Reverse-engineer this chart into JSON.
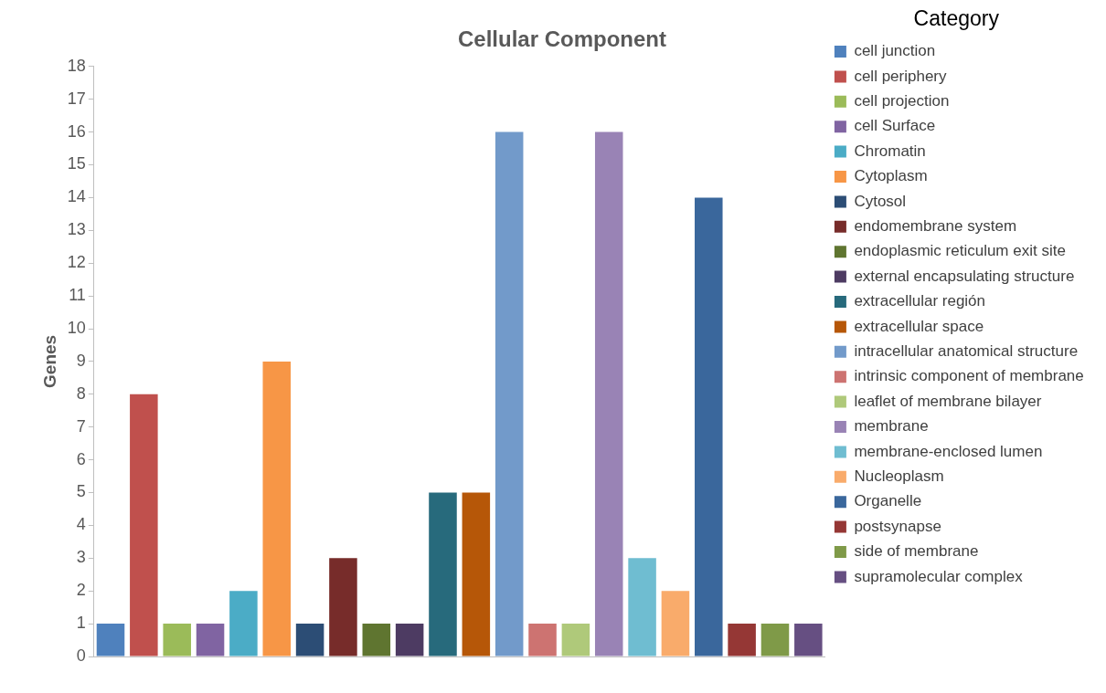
{
  "chart_data": {
    "type": "bar",
    "title": "Cellular Component",
    "ylabel": "Genes",
    "legend_title": "Category",
    "legend": "right",
    "tick_labels": "y",
    "grid": false,
    "categories": [
      null,
      null,
      null,
      null,
      null,
      null,
      null,
      null,
      null,
      null,
      null,
      null,
      null,
      null,
      null,
      null,
      null,
      null,
      null,
      null,
      null,
      null
    ],
    "series": [
      {
        "name": "cell junction",
        "color": "#4f81bd",
        "values": [
          1,
          null,
          null,
          null,
          null,
          null,
          null,
          null,
          null,
          null,
          null,
          null,
          null,
          null,
          null,
          null,
          null,
          null,
          null,
          null,
          null,
          null
        ]
      },
      {
        "name": "cell periphery",
        "color": "#c0504d",
        "values": [
          null,
          8,
          null,
          null,
          null,
          null,
          null,
          null,
          null,
          null,
          null,
          null,
          null,
          null,
          null,
          null,
          null,
          null,
          null,
          null,
          null,
          null
        ]
      },
      {
        "name": "cell projection",
        "color": "#9bbb59",
        "values": [
          null,
          null,
          1,
          null,
          null,
          null,
          null,
          null,
          null,
          null,
          null,
          null,
          null,
          null,
          null,
          null,
          null,
          null,
          null,
          null,
          null,
          null
        ]
      },
      {
        "name": "cell Surface",
        "color": "#8064a2",
        "values": [
          null,
          null,
          null,
          1,
          null,
          null,
          null,
          null,
          null,
          null,
          null,
          null,
          null,
          null,
          null,
          null,
          null,
          null,
          null,
          null,
          null,
          null
        ]
      },
      {
        "name": "Chromatin",
        "color": "#4bacc6",
        "values": [
          null,
          null,
          null,
          null,
          2,
          null,
          null,
          null,
          null,
          null,
          null,
          null,
          null,
          null,
          null,
          null,
          null,
          null,
          null,
          null,
          null,
          null
        ]
      },
      {
        "name": "Cytoplasm",
        "color": "#f79646",
        "values": [
          null,
          null,
          null,
          null,
          null,
          9,
          null,
          null,
          null,
          null,
          null,
          null,
          null,
          null,
          null,
          null,
          null,
          null,
          null,
          null,
          null,
          null
        ]
      },
      {
        "name": "Cytosol",
        "color": "#2c4d75",
        "values": [
          null,
          null,
          null,
          null,
          null,
          null,
          1,
          null,
          null,
          null,
          null,
          null,
          null,
          null,
          null,
          null,
          null,
          null,
          null,
          null,
          null,
          null
        ]
      },
      {
        "name": "endomembrane system",
        "color": "#772c2a",
        "values": [
          null,
          null,
          null,
          null,
          null,
          null,
          null,
          3,
          null,
          null,
          null,
          null,
          null,
          null,
          null,
          null,
          null,
          null,
          null,
          null,
          null,
          null
        ]
      },
      {
        "name": "endoplasmic reticulum exit site",
        "color": "#5f7530",
        "values": [
          null,
          null,
          null,
          null,
          null,
          null,
          null,
          null,
          1,
          null,
          null,
          null,
          null,
          null,
          null,
          null,
          null,
          null,
          null,
          null,
          null,
          null
        ]
      },
      {
        "name": "external encapsulating structure",
        "color": "#4d3b62",
        "values": [
          null,
          null,
          null,
          null,
          null,
          null,
          null,
          null,
          null,
          1,
          null,
          null,
          null,
          null,
          null,
          null,
          null,
          null,
          null,
          null,
          null,
          null
        ]
      },
      {
        "name": "extracellular región",
        "color": "#276a7c",
        "values": [
          null,
          null,
          null,
          null,
          null,
          null,
          null,
          null,
          null,
          null,
          5,
          null,
          null,
          null,
          null,
          null,
          null,
          null,
          null,
          null,
          null,
          null
        ]
      },
      {
        "name": "extracellular space",
        "color": "#b65708",
        "values": [
          null,
          null,
          null,
          null,
          null,
          null,
          null,
          null,
          null,
          null,
          null,
          5,
          null,
          null,
          null,
          null,
          null,
          null,
          null,
          null,
          null,
          null
        ]
      },
      {
        "name": "intracellular anatomical structure",
        "color": "#729aca",
        "values": [
          null,
          null,
          null,
          null,
          null,
          null,
          null,
          null,
          null,
          null,
          null,
          null,
          16,
          null,
          null,
          null,
          null,
          null,
          null,
          null,
          null,
          null
        ]
      },
      {
        "name": "intrinsic component of membrane",
        "color": "#cd7371",
        "values": [
          null,
          null,
          null,
          null,
          null,
          null,
          null,
          null,
          null,
          null,
          null,
          null,
          null,
          1,
          null,
          null,
          null,
          null,
          null,
          null,
          null,
          null
        ]
      },
      {
        "name": "leaflet of membrane bilayer",
        "color": "#afc97a",
        "values": [
          null,
          null,
          null,
          null,
          null,
          null,
          null,
          null,
          null,
          null,
          null,
          null,
          null,
          null,
          1,
          null,
          null,
          null,
          null,
          null,
          null,
          null
        ]
      },
      {
        "name": "membrane",
        "color": "#9983b5",
        "values": [
          null,
          null,
          null,
          null,
          null,
          null,
          null,
          null,
          null,
          null,
          null,
          null,
          null,
          null,
          null,
          16,
          null,
          null,
          null,
          null,
          null,
          null
        ]
      },
      {
        "name": "membrane-enclosed lumen",
        "color": "#6fbdd1",
        "values": [
          null,
          null,
          null,
          null,
          null,
          null,
          null,
          null,
          null,
          null,
          null,
          null,
          null,
          null,
          null,
          null,
          3,
          null,
          null,
          null,
          null,
          null
        ]
      },
      {
        "name": "Nucleoplasm",
        "color": "#f9ab6b",
        "values": [
          null,
          null,
          null,
          null,
          null,
          null,
          null,
          null,
          null,
          null,
          null,
          null,
          null,
          null,
          null,
          null,
          null,
          2,
          null,
          null,
          null,
          null
        ]
      },
      {
        "name": "Organelle",
        "color": "#3a679c",
        "values": [
          null,
          null,
          null,
          null,
          null,
          null,
          null,
          null,
          null,
          null,
          null,
          null,
          null,
          null,
          null,
          null,
          null,
          null,
          14,
          null,
          null,
          null
        ]
      },
      {
        "name": "postsynapse",
        "color": "#953735",
        "values": [
          null,
          null,
          null,
          null,
          null,
          null,
          null,
          null,
          null,
          null,
          null,
          null,
          null,
          null,
          null,
          null,
          null,
          null,
          null,
          1,
          null,
          null
        ]
      },
      {
        "name": "side of membrane",
        "color": "#7f9a48",
        "values": [
          null,
          null,
          null,
          null,
          null,
          null,
          null,
          null,
          null,
          null,
          null,
          null,
          null,
          null,
          null,
          null,
          null,
          null,
          null,
          null,
          1,
          null
        ]
      },
      {
        "name": "supramolecular complex",
        "color": "#664f82",
        "values": [
          null,
          null,
          null,
          null,
          null,
          null,
          null,
          null,
          null,
          null,
          null,
          null,
          null,
          null,
          null,
          null,
          null,
          null,
          null,
          null,
          null,
          1
        ]
      }
    ],
    "ylim": [
      0,
      18
    ],
    "yticks": [
      0,
      1,
      2,
      3,
      4,
      5,
      6,
      7,
      8,
      9,
      10,
      11,
      12,
      13,
      14,
      15,
      16,
      17,
      18
    ]
  }
}
